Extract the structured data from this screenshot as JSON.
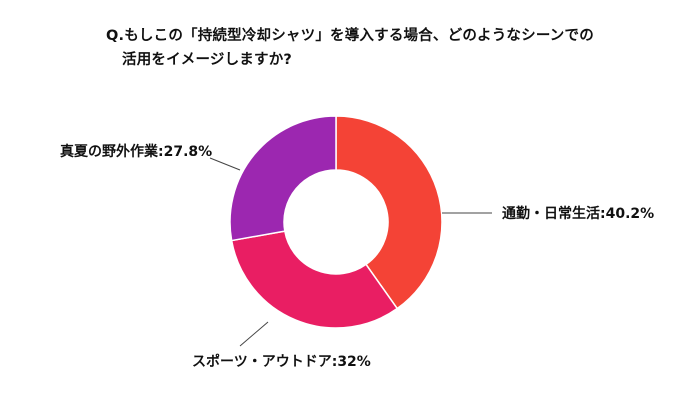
{
  "question": {
    "line1": "Q.もしこの「持続型冷却シャツ」を導入する場合、どのようなシーンでの",
    "line2": "活用をイメージしますか?"
  },
  "chart_data": {
    "type": "pie",
    "title": "Q.もしこの「持続型冷却シャツ」を導入する場合、どのようなシーンでの活用をイメージしますか?",
    "donut": true,
    "slices": [
      {
        "name": "通勤・日常生活",
        "value": 40.2,
        "label": "通勤・日常生活:40.2%",
        "color": "#f44336"
      },
      {
        "name": "スポーツ・アウトドア",
        "value": 32,
        "label": "スポーツ・アウトドア:32%",
        "color": "#e91e63"
      },
      {
        "name": "真夏の野外作業",
        "value": 27.8,
        "label": "真夏の野外作業:27.8%",
        "color": "#9c27b0"
      }
    ]
  }
}
